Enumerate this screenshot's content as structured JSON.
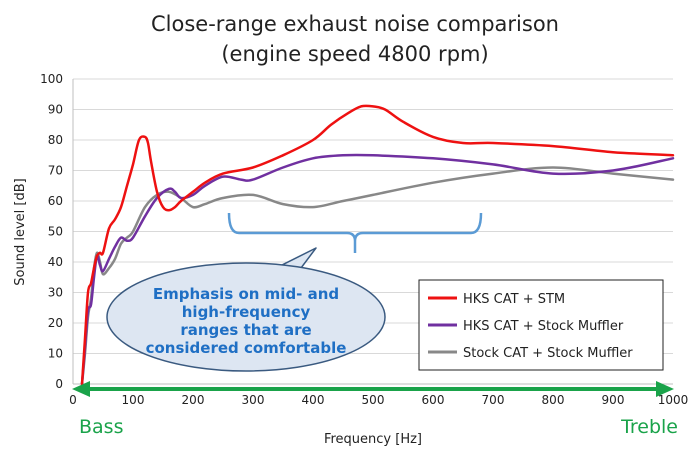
{
  "chart_data": {
    "type": "line",
    "title": [
      "Close-range exhaust noise comparison",
      "(engine speed 4800 rpm)"
    ],
    "xlabel": "Frequency [Hz]",
    "ylabel": "Sound level [dB]",
    "xlim": [
      0,
      1000
    ],
    "ylim": [
      0,
      100
    ],
    "xticks": [
      0,
      100,
      200,
      300,
      400,
      500,
      600,
      700,
      800,
      900,
      1000
    ],
    "yticks": [
      0,
      10,
      20,
      30,
      40,
      50,
      60,
      70,
      80,
      90,
      100
    ],
    "grid": "horizontal",
    "legend_position": "bottom-right",
    "series": [
      {
        "name": "HKS CAT + STM",
        "color": "#ee1111",
        "x": [
          15,
          20,
          25,
          30,
          35,
          40,
          45,
          50,
          60,
          70,
          80,
          90,
          100,
          110,
          120,
          125,
          130,
          140,
          150,
          160,
          170,
          180,
          200,
          220,
          250,
          300,
          350,
          400,
          430,
          460,
          480,
          500,
          520,
          550,
          600,
          650,
          700,
          800,
          900,
          1000
        ],
        "y": [
          0,
          15,
          30,
          33,
          38,
          42,
          43,
          43,
          51,
          54,
          58,
          65,
          72,
          80,
          81,
          79,
          73,
          63,
          58,
          57,
          58,
          60,
          63,
          66,
          69,
          71,
          75,
          80,
          85,
          89,
          91,
          91,
          90,
          86,
          81,
          79,
          79,
          78,
          76,
          75
        ]
      },
      {
        "name": "HKS CAT + Stock Muffler",
        "color": "#7030a0",
        "x": [
          15,
          20,
          25,
          30,
          35,
          40,
          45,
          50,
          60,
          70,
          80,
          90,
          100,
          120,
          140,
          160,
          170,
          180,
          200,
          220,
          250,
          280,
          300,
          350,
          400,
          450,
          500,
          600,
          700,
          800,
          900,
          1000
        ],
        "y": [
          0,
          12,
          24,
          26,
          35,
          42,
          39,
          37,
          41,
          45,
          48,
          47,
          48,
          55,
          61,
          64,
          63,
          61,
          62,
          65,
          68,
          67,
          67,
          71,
          74,
          75,
          75,
          74,
          72,
          69,
          70,
          74
        ]
      },
      {
        "name": "Stock CAT + Stock Muffler",
        "color": "#888888",
        "x": [
          15,
          20,
          25,
          30,
          35,
          40,
          45,
          50,
          60,
          70,
          80,
          90,
          100,
          120,
          140,
          160,
          180,
          200,
          220,
          250,
          300,
          350,
          400,
          450,
          500,
          600,
          700,
          800,
          900,
          1000
        ],
        "y": [
          0,
          10,
          22,
          28,
          38,
          43,
          40,
          36,
          38,
          41,
          46,
          48,
          50,
          58,
          62,
          63,
          61,
          58,
          59,
          61,
          62,
          59,
          58,
          60,
          62,
          66,
          69,
          71,
          69,
          67
        ]
      }
    ],
    "annotations": {
      "bracket_range": [
        260,
        680
      ],
      "callout_lines": [
        "Emphasis on mid- and",
        "high-frequency",
        "ranges that are",
        "considered comfortable"
      ],
      "bass_label": "Bass",
      "treble_label": "Treble",
      "colors": {
        "bracket": "#5b9bd5",
        "callout_border": "#3a5a80",
        "callout_text": "#1f6fc4",
        "range_arrow": "#1aa34a"
      }
    }
  }
}
